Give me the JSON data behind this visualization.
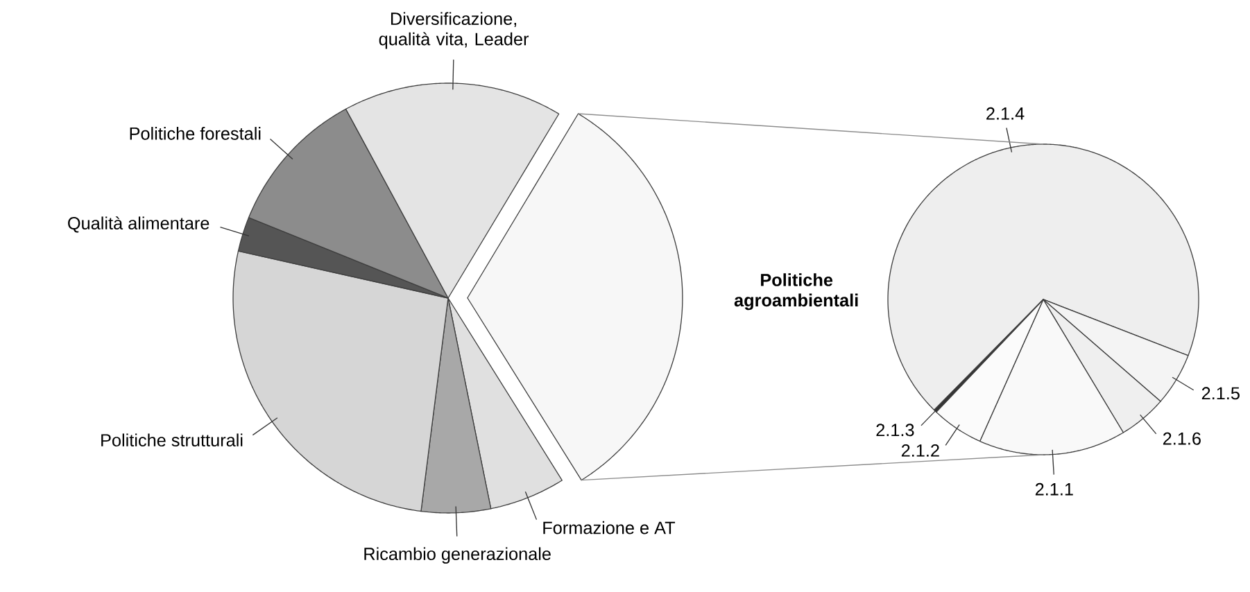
{
  "chart_data": [
    {
      "type": "pie",
      "categories": [
        null,
        "Formazione e AT",
        "Ricambio generazionale",
        "Politiche strutturali",
        "Qualità alimentare",
        "Politiche forestali",
        "Diversificazione, qualità vita, Leader"
      ],
      "values": [
        32.5,
        5.7,
        5.2,
        26.5,
        2.6,
        11,
        16.5
      ],
      "colors": [
        "#f7f7f7",
        "#e0e0e0",
        "#a8a8a8",
        "#d6d6d6",
        "#555555",
        "#8c8c8c",
        "#e4e4e4"
      ]
    },
    {
      "type": "pie",
      "title": "Politiche agroambientali",
      "categories": [
        "2.1.4",
        "2.1.5",
        "2.1.6",
        "2.1.1",
        "2.1.2",
        "2.1.3"
      ],
      "values": [
        68.5,
        5.5,
        5,
        15.3,
        5.4,
        0.3
      ],
      "colors": [
        "#eeeeee",
        "#f4f4f4",
        "#efefef",
        "#f9f9f9",
        "#fbfbfb",
        "#333333"
      ]
    }
  ]
}
